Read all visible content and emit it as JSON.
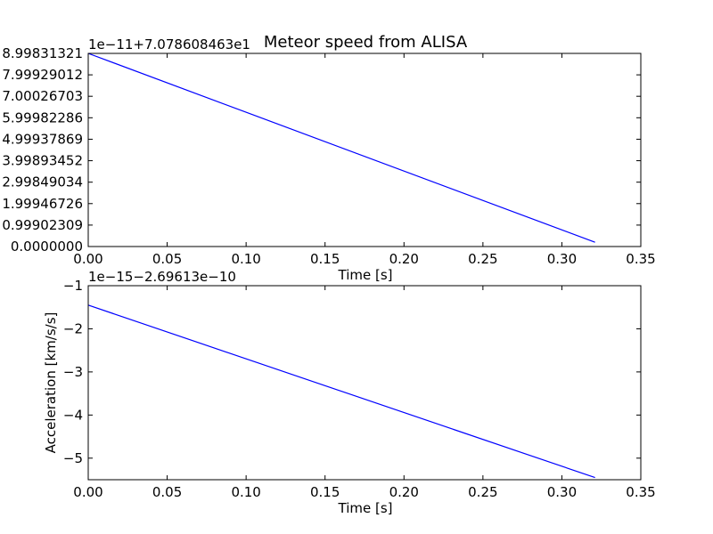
{
  "chart_data": [
    {
      "type": "line",
      "title": "Meteor speed from  ALISA",
      "xlabel": "Time [s]",
      "ylabel": "",
      "offset_text": "1e−11+7.078608463e1",
      "x_ticks": [
        "0.00",
        "0.05",
        "0.10",
        "0.15",
        "0.20",
        "0.25",
        "0.30",
        "0.35"
      ],
      "x_tick_values": [
        0,
        0.05,
        0.1,
        0.15,
        0.2,
        0.25,
        0.3,
        0.35
      ],
      "y_ticks": [
        "0.0000000",
        "0.99902309",
        "1.99946726",
        "2.99849034",
        "3.99893452",
        "4.99937869",
        "5.99982286",
        "7.00026703",
        "7.99929012",
        "8.99831321"
      ],
      "y_tick_values": [
        0.0,
        0.99902309,
        1.99946726,
        2.99849034,
        3.99893452,
        4.99937869,
        5.99982286,
        7.00026703,
        7.99929012,
        8.99831321
      ],
      "xlim": [
        0,
        0.35
      ],
      "ylim": [
        0.0,
        8.99831321
      ],
      "grid": false,
      "series": [
        {
          "color": "#0000ff",
          "x": [
            0.0,
            0.321
          ],
          "y": [
            8.99831321,
            0.2
          ]
        }
      ]
    },
    {
      "type": "line",
      "title": "",
      "xlabel": "Time [s]",
      "ylabel": "Acceleration [km/s/s]",
      "offset_text": "1e−15−2.69613e−10",
      "x_ticks": [
        "0.00",
        "0.05",
        "0.10",
        "0.15",
        "0.20",
        "0.25",
        "0.30",
        "0.35"
      ],
      "x_tick_values": [
        0,
        0.05,
        0.1,
        0.15,
        0.2,
        0.25,
        0.3,
        0.35
      ],
      "y_ticks": [
        "−1",
        "−2",
        "−3",
        "−4",
        "−5"
      ],
      "y_tick_values": [
        -1,
        -2,
        -3,
        -4,
        -5
      ],
      "xlim": [
        0,
        0.35
      ],
      "ylim": [
        -5.5,
        -1
      ],
      "grid": false,
      "series": [
        {
          "color": "#0000ff",
          "x": [
            0.0,
            0.321
          ],
          "y": [
            -1.45,
            -5.45
          ]
        }
      ]
    }
  ]
}
